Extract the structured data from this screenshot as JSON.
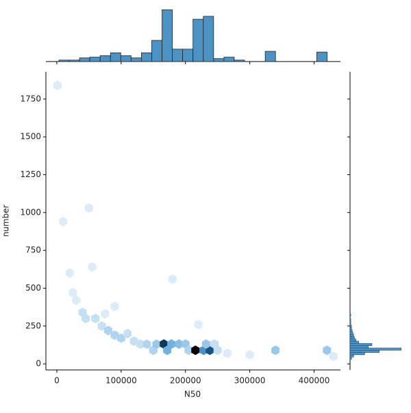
{
  "chart_data": {
    "type": "hexbin",
    "xlabel": "N50",
    "ylabel": "number",
    "xlim": [
      -17000,
      441000
    ],
    "ylim": [
      -40,
      1930
    ],
    "xticks": [
      0,
      100000,
      200000,
      300000,
      400000
    ],
    "yticks": [
      0,
      250,
      500,
      750,
      1000,
      1250,
      1500,
      1750
    ],
    "color": "#1f77b4",
    "hexbins": {
      "x": [
        1000,
        10000,
        50000,
        55000,
        20000,
        25000,
        30000,
        40000,
        45000,
        60000,
        70000,
        80000,
        90000,
        100000,
        110000,
        120000,
        130000,
        140000,
        150000,
        155000,
        166400,
        171700,
        178100,
        190000,
        200000,
        205000,
        215500,
        228300,
        237900,
        232000,
        245000,
        220000,
        250000,
        265000,
        300000,
        340000,
        420000,
        430000,
        180000,
        75000,
        90000
      ],
      "y": [
        1840,
        940,
        1030,
        640,
        600,
        470,
        420,
        340,
        300,
        300,
        250,
        220,
        190,
        170,
        200,
        150,
        130,
        130,
        90,
        130,
        131,
        90,
        131,
        131,
        131,
        90,
        90,
        90,
        90,
        131,
        131,
        260,
        90,
        70,
        60,
        90,
        90,
        50,
        560,
        330,
        380
      ],
      "counts": [
        1,
        1,
        1,
        1,
        1,
        1,
        1,
        2,
        2,
        2,
        2,
        3,
        3,
        3,
        2,
        2,
        2,
        3,
        3,
        4,
        12,
        6,
        6,
        5,
        4,
        3,
        14,
        8,
        11,
        4,
        2,
        1,
        2,
        1,
        1,
        4,
        4,
        1,
        1,
        1,
        1
      ]
    },
    "x_marginal": {
      "color": "#4c92c3",
      "bins": [
        3200,
        19240,
        35280,
        51320,
        67360,
        83400,
        99440,
        115480,
        131520,
        147560,
        163600,
        179640,
        195680,
        211720,
        227760,
        243800,
        259840,
        275880,
        291920,
        307960,
        324000,
        340040,
        356080,
        372120,
        388160,
        404200,
        420240
      ],
      "counts": [
        2,
        2,
        5,
        6,
        8,
        12,
        8,
        5,
        12,
        29,
        71,
        17,
        17,
        58,
        62,
        4,
        6,
        2,
        0,
        0,
        14,
        0,
        0,
        0,
        0,
        13
      ],
      "lim": [
        0,
        75
      ]
    },
    "y_marginal": {
      "color": "#4c92c3",
      "bins": [
        30,
        45,
        60,
        75,
        90,
        105,
        120,
        135,
        150,
        165,
        180,
        195,
        210,
        225,
        240,
        255,
        270,
        285,
        300,
        315,
        330
      ],
      "counts": [
        2,
        5,
        20,
        40,
        70,
        25,
        30,
        12,
        8,
        6,
        5,
        4,
        3,
        2,
        2,
        1,
        1,
        1,
        0,
        1
      ],
      "lim": [
        0,
        75
      ]
    }
  }
}
